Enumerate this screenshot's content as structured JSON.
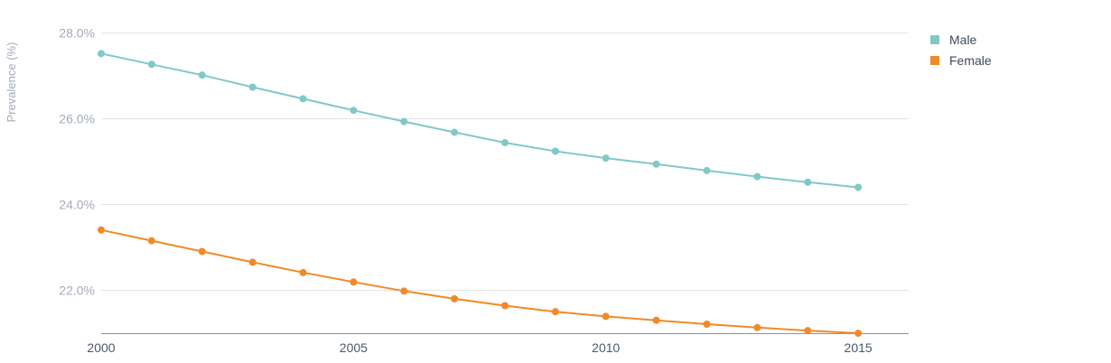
{
  "chart_data": {
    "type": "line",
    "title": "",
    "xlabel": "",
    "ylabel": "Prevalence (%)",
    "x": [
      2000,
      2001,
      2002,
      2003,
      2004,
      2005,
      2006,
      2007,
      2008,
      2009,
      2010,
      2011,
      2012,
      2013,
      2014,
      2015
    ],
    "xlim": [
      2000,
      2016
    ],
    "ylim": [
      21.0,
      28.2
    ],
    "x_ticks": [
      "2000",
      "2005",
      "2010",
      "2015"
    ],
    "y_ticks": [
      "22.0%",
      "24.0%",
      "26.0%",
      "28.0%"
    ],
    "grid": true,
    "legend_position": "top-right",
    "series": [
      {
        "name": "Male",
        "color": "#82c8c8",
        "values": [
          27.5,
          27.25,
          27.0,
          26.72,
          26.45,
          26.18,
          25.92,
          25.67,
          25.43,
          25.23,
          25.07,
          24.93,
          24.78,
          24.64,
          24.51,
          24.39
        ]
      },
      {
        "name": "Female",
        "color": "#f08a28",
        "values": [
          23.4,
          23.15,
          22.9,
          22.65,
          22.41,
          22.19,
          21.98,
          21.8,
          21.64,
          21.5,
          21.39,
          21.3,
          21.21,
          21.13,
          21.06,
          21.0
        ]
      }
    ]
  }
}
